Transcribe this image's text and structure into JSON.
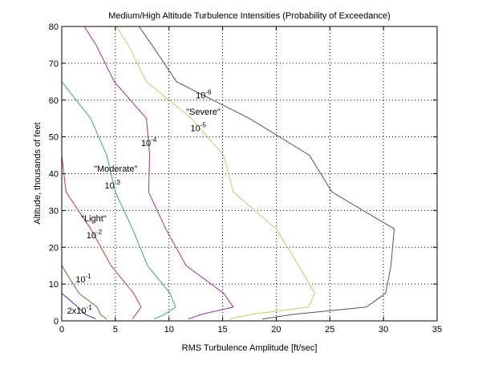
{
  "chart_data": {
    "type": "line",
    "title": "Medium/High Altitude Turbulence Intensities (Probability of Exceedance)",
    "xlabel": "RMS Turbulence Amplitude [ft/sec]",
    "ylabel": "Altitude, thousands of feet",
    "xlim": [
      0,
      35
    ],
    "ylim": [
      0,
      80
    ],
    "xticks": [
      "0",
      "5",
      "10",
      "15",
      "20",
      "25",
      "30",
      "35"
    ],
    "yticks": [
      "0",
      "10",
      "20",
      "30",
      "40",
      "50",
      "60",
      "70",
      "80"
    ],
    "grid": true,
    "altitude": [
      0.5,
      1.75,
      3.75,
      7.5,
      15,
      25,
      35,
      45,
      55,
      65,
      75,
      80
    ],
    "series": [
      {
        "label": "2x10^-1",
        "color": "#3333aa",
        "values": [
          3.2,
          2.2,
          1.5,
          0,
          0,
          0,
          0,
          0,
          0,
          0,
          0,
          0
        ]
      },
      {
        "label": "10^-1",
        "color": "#4d7a33",
        "values": [
          4.2,
          3.6,
          3.3,
          1.6,
          0,
          0,
          0,
          0,
          0,
          0,
          0,
          0
        ]
      },
      {
        "label": "10^-2",
        "color": "#b04040",
        "values": [
          6.6,
          6.9,
          7.4,
          6.7,
          4.6,
          2.7,
          0.4,
          0,
          0,
          0,
          0,
          0
        ]
      },
      {
        "label": "10^-3",
        "color": "#40a090",
        "values": [
          8.6,
          9.6,
          10.6,
          10.1,
          8.0,
          6.6,
          5.0,
          4.2,
          2.7,
          0,
          0,
          0
        ]
      },
      {
        "label": "10^-4",
        "color": "#993399",
        "values": [
          11.8,
          13.0,
          16.0,
          15.1,
          11.6,
          9.7,
          8.1,
          8.2,
          7.9,
          4.9,
          3.2,
          2.1
        ]
      },
      {
        "label": "10^-5",
        "color": "#c8c870",
        "values": [
          15.6,
          17.6,
          23.0,
          23.6,
          22.1,
          20.0,
          16.0,
          15.1,
          12.1,
          7.9,
          6.2,
          5.1
        ]
      },
      {
        "label": "10^-6",
        "color": "#555555",
        "values": [
          18.7,
          21.5,
          28.4,
          30.2,
          30.7,
          31.0,
          25.2,
          23.1,
          17.5,
          10.7,
          8.4,
          7.2
        ]
      }
    ],
    "annotations": [
      {
        "text": "2x10",
        "sup": "-1",
        "x": 0.5,
        "y": 2
      },
      {
        "text": "10",
        "sup": "-1",
        "x": 1.3,
        "y": 10.5
      },
      {
        "text": "\"Light\"",
        "x": 1.8,
        "y": 27,
        "sup": ""
      },
      {
        "text": "10",
        "sup": "-2",
        "x": 2.3,
        "y": 22.5
      },
      {
        "text": "\"Moderate\"",
        "x": 3.0,
        "y": 40.5,
        "sup": ""
      },
      {
        "text": "10",
        "sup": "-3",
        "x": 4.0,
        "y": 36
      },
      {
        "text": "10",
        "sup": "-4",
        "x": 7.4,
        "y": 47.5
      },
      {
        "text": "\"Severe\"",
        "x": 11.6,
        "y": 56,
        "sup": ""
      },
      {
        "text": "10",
        "sup": "-5",
        "x": 12.0,
        "y": 51.5
      },
      {
        "text": "10",
        "sup": "-6",
        "x": 12.5,
        "y": 60.5
      }
    ]
  }
}
